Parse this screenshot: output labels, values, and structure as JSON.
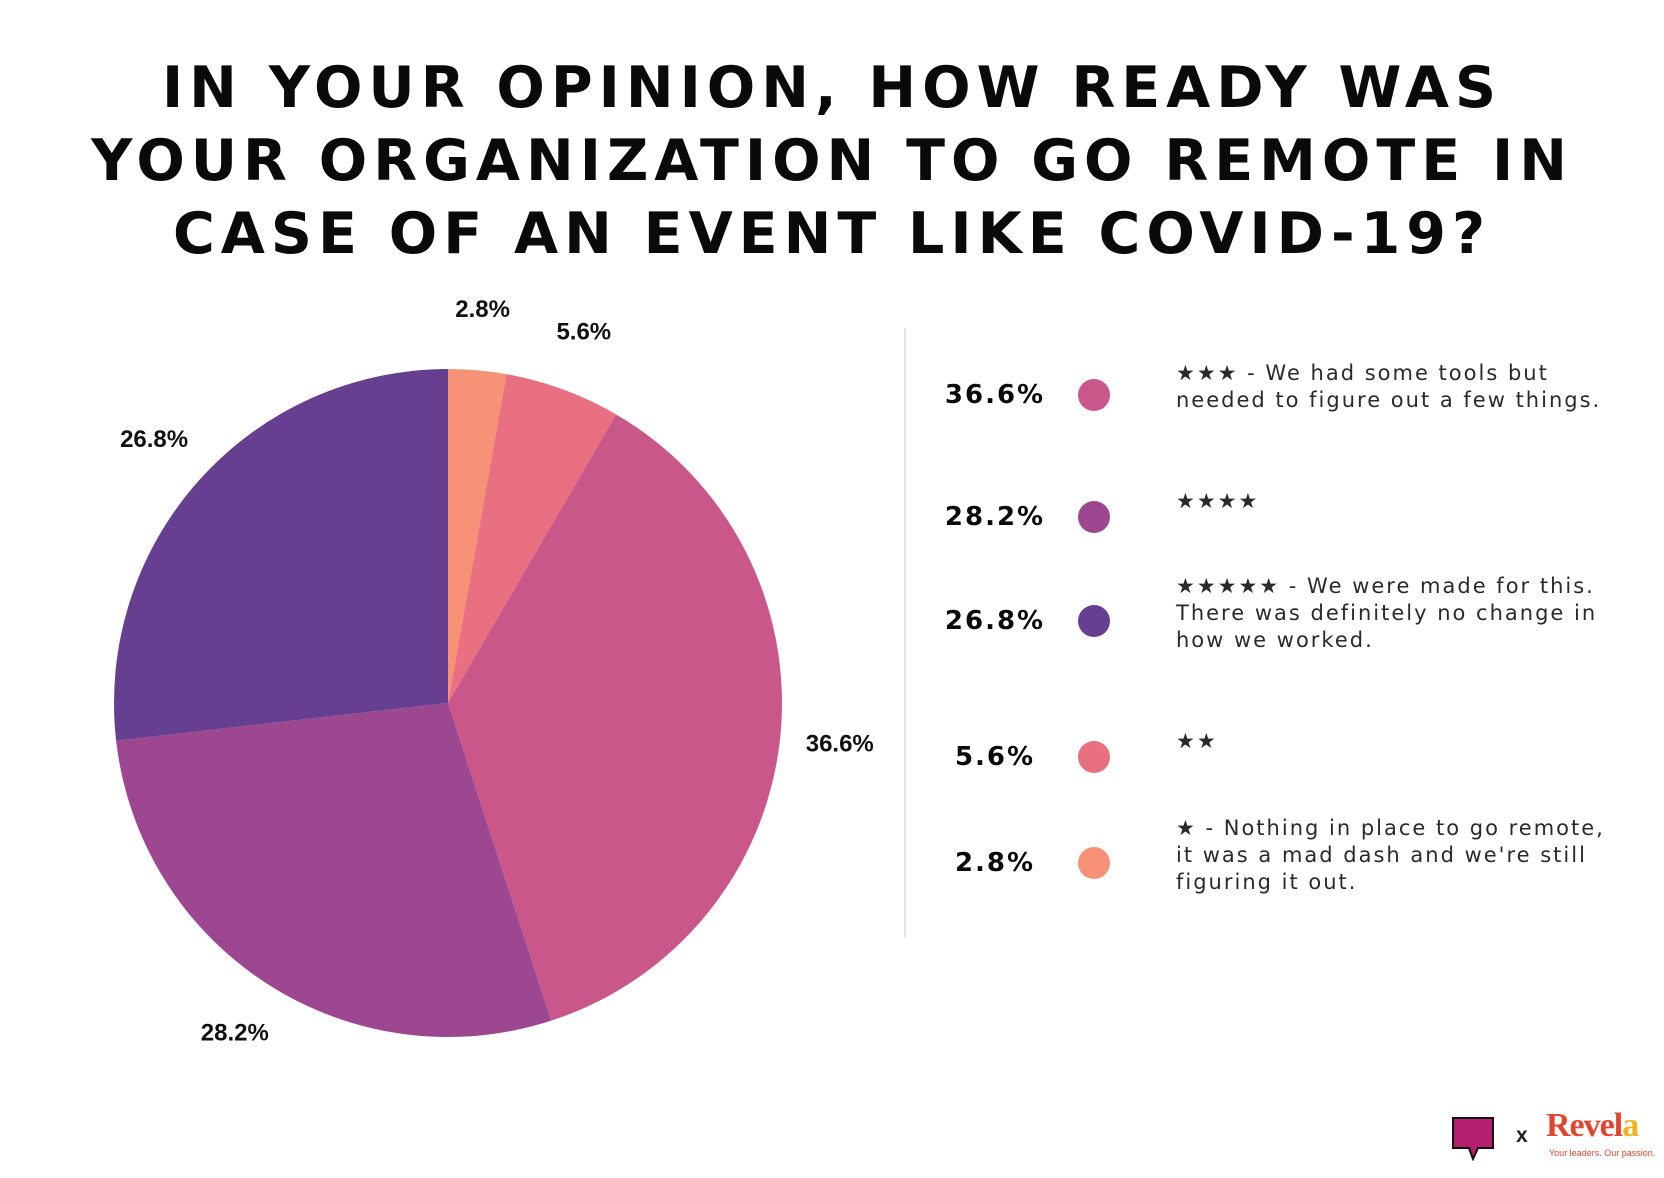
{
  "chart_data": {
    "type": "pie",
    "title_lines": [
      "IN YOUR OPINION, HOW READY WAS",
      "YOUR ORGANIZATION TO GO REMOTE IN",
      "CASE OF AN EVENT LIKE COVID-19?"
    ],
    "slices": [
      {
        "label": "★ - Nothing in place to go remote, it was a mad dash and we're still figuring it out.",
        "value": 2.8,
        "value_label": "2.8%",
        "color": "#f79276"
      },
      {
        "label": "★★",
        "value": 5.6,
        "value_label": "5.6%",
        "color": "#e97080"
      },
      {
        "label": "★★★ - We had some tools but needed to figure out a few things.",
        "value": 36.6,
        "value_label": "36.6%",
        "color": "#c9578a"
      },
      {
        "label": "★★★★",
        "value": 28.2,
        "value_label": "28.2%",
        "color": "#9d4791"
      },
      {
        "label": "★★★★★ - We were made for this. There was definitely no change in how we worked.",
        "value": 26.8,
        "value_label": "26.8%",
        "color": "#673f90"
      }
    ],
    "start_angle": "12 o'clock",
    "direction": "clockwise"
  },
  "legend": [
    {
      "pct": "36.6%",
      "color": "#c9578a",
      "text": "★★★ - We had some tools but needed to figure out a few things."
    },
    {
      "pct": "28.2%",
      "color": "#9d4791",
      "text": "★★★★"
    },
    {
      "pct": "26.8%",
      "color": "#673f90",
      "text": "★★★★★ - We were made for this. There was definitely no change in how we worked."
    },
    {
      "pct": "5.6%",
      "color": "#e97080",
      "text": "★★"
    },
    {
      "pct": "2.8%",
      "color": "#f79276",
      "text": "★ - Nothing in place to go remote, it was a mad dash and we're still figuring it out."
    }
  ],
  "footer": {
    "separator": "x",
    "brand_main": "Revel",
    "brand_accent": "a",
    "tagline": "Your leaders. Our passion."
  }
}
